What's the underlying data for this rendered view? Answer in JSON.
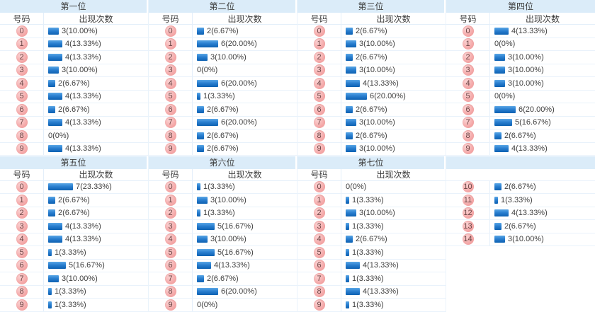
{
  "board": {
    "column_headers": {
      "number": "号码",
      "count": "出现次数"
    },
    "colors": {
      "header_band": "#dbecf9",
      "grid_line": "#e4effa",
      "bar_blue_top": "#5aa7e6",
      "bar_blue_bottom": "#0d61b2",
      "ball_pink": "#f4a9a9",
      "text": "#404040"
    },
    "tables": [
      {
        "title": "第一位",
        "rows": [
          {
            "num": "0",
            "count": 3,
            "label": "3(10.00%)"
          },
          {
            "num": "1",
            "count": 4,
            "label": "4(13.33%)"
          },
          {
            "num": "2",
            "count": 4,
            "label": "4(13.33%)"
          },
          {
            "num": "3",
            "count": 3,
            "label": "3(10.00%)"
          },
          {
            "num": "4",
            "count": 2,
            "label": "2(6.67%)"
          },
          {
            "num": "5",
            "count": 4,
            "label": "4(13.33%)"
          },
          {
            "num": "6",
            "count": 2,
            "label": "2(6.67%)"
          },
          {
            "num": "7",
            "count": 4,
            "label": "4(13.33%)"
          },
          {
            "num": "8",
            "count": 0,
            "label": "0(0%)"
          },
          {
            "num": "9",
            "count": 4,
            "label": "4(13.33%)"
          }
        ]
      },
      {
        "title": "第二位",
        "rows": [
          {
            "num": "0",
            "count": 2,
            "label": "2(6.67%)"
          },
          {
            "num": "1",
            "count": 6,
            "label": "6(20.00%)"
          },
          {
            "num": "2",
            "count": 3,
            "label": "3(10.00%)"
          },
          {
            "num": "3",
            "count": 0,
            "label": "0(0%)"
          },
          {
            "num": "4",
            "count": 6,
            "label": "6(20.00%)"
          },
          {
            "num": "5",
            "count": 1,
            "label": "1(3.33%)"
          },
          {
            "num": "6",
            "count": 2,
            "label": "2(6.67%)"
          },
          {
            "num": "7",
            "count": 6,
            "label": "6(20.00%)"
          },
          {
            "num": "8",
            "count": 2,
            "label": "2(6.67%)"
          },
          {
            "num": "9",
            "count": 2,
            "label": "2(6.67%)"
          }
        ]
      },
      {
        "title": "第三位",
        "rows": [
          {
            "num": "0",
            "count": 2,
            "label": "2(6.67%)"
          },
          {
            "num": "1",
            "count": 3,
            "label": "3(10.00%)"
          },
          {
            "num": "2",
            "count": 2,
            "label": "2(6.67%)"
          },
          {
            "num": "3",
            "count": 3,
            "label": "3(10.00%)"
          },
          {
            "num": "4",
            "count": 4,
            "label": "4(13.33%)"
          },
          {
            "num": "5",
            "count": 6,
            "label": "6(20.00%)"
          },
          {
            "num": "6",
            "count": 2,
            "label": "2(6.67%)"
          },
          {
            "num": "7",
            "count": 3,
            "label": "3(10.00%)"
          },
          {
            "num": "8",
            "count": 2,
            "label": "2(6.67%)"
          },
          {
            "num": "9",
            "count": 3,
            "label": "3(10.00%)"
          }
        ]
      },
      {
        "title": "第四位",
        "rows": [
          {
            "num": "0",
            "count": 4,
            "label": "4(13.33%)"
          },
          {
            "num": "1",
            "count": 0,
            "label": "0(0%)"
          },
          {
            "num": "2",
            "count": 3,
            "label": "3(10.00%)"
          },
          {
            "num": "3",
            "count": 3,
            "label": "3(10.00%)"
          },
          {
            "num": "4",
            "count": 3,
            "label": "3(10.00%)"
          },
          {
            "num": "5",
            "count": 0,
            "label": "0(0%)"
          },
          {
            "num": "6",
            "count": 6,
            "label": "6(20.00%)"
          },
          {
            "num": "7",
            "count": 5,
            "label": "5(16.67%)"
          },
          {
            "num": "8",
            "count": 2,
            "label": "2(6.67%)"
          },
          {
            "num": "9",
            "count": 4,
            "label": "4(13.33%)"
          }
        ]
      },
      {
        "title": "第五位",
        "rows": [
          {
            "num": "0",
            "count": 7,
            "label": "7(23.33%)"
          },
          {
            "num": "1",
            "count": 2,
            "label": "2(6.67%)"
          },
          {
            "num": "2",
            "count": 2,
            "label": "2(6.67%)"
          },
          {
            "num": "3",
            "count": 4,
            "label": "4(13.33%)"
          },
          {
            "num": "4",
            "count": 4,
            "label": "4(13.33%)"
          },
          {
            "num": "5",
            "count": 1,
            "label": "1(3.33%)"
          },
          {
            "num": "6",
            "count": 5,
            "label": "5(16.67%)"
          },
          {
            "num": "7",
            "count": 3,
            "label": "3(10.00%)"
          },
          {
            "num": "8",
            "count": 1,
            "label": "1(3.33%)"
          },
          {
            "num": "9",
            "count": 1,
            "label": "1(3.33%)"
          }
        ]
      },
      {
        "title": "第六位",
        "rows": [
          {
            "num": "0",
            "count": 1,
            "label": "1(3.33%)"
          },
          {
            "num": "1",
            "count": 3,
            "label": "3(10.00%)"
          },
          {
            "num": "2",
            "count": 1,
            "label": "1(3.33%)"
          },
          {
            "num": "3",
            "count": 5,
            "label": "5(16.67%)"
          },
          {
            "num": "4",
            "count": 3,
            "label": "3(10.00%)"
          },
          {
            "num": "5",
            "count": 5,
            "label": "5(16.67%)"
          },
          {
            "num": "6",
            "count": 4,
            "label": "4(13.33%)"
          },
          {
            "num": "7",
            "count": 2,
            "label": "2(6.67%)"
          },
          {
            "num": "8",
            "count": 6,
            "label": "6(20.00%)"
          },
          {
            "num": "9",
            "count": 0,
            "label": "0(0%)"
          }
        ]
      },
      {
        "title": "第七位",
        "rows": [
          {
            "num": "0",
            "count": 0,
            "label": "0(0%)"
          },
          {
            "num": "1",
            "count": 1,
            "label": "1(3.33%)"
          },
          {
            "num": "2",
            "count": 3,
            "label": "3(10.00%)"
          },
          {
            "num": "3",
            "count": 1,
            "label": "1(3.33%)"
          },
          {
            "num": "4",
            "count": 2,
            "label": "2(6.67%)"
          },
          {
            "num": "5",
            "count": 1,
            "label": "1(3.33%)"
          },
          {
            "num": "6",
            "count": 4,
            "label": "4(13.33%)"
          },
          {
            "num": "7",
            "count": 1,
            "label": "1(3.33%)"
          },
          {
            "num": "8",
            "count": 4,
            "label": "4(13.33%)"
          },
          {
            "num": "9",
            "count": 1,
            "label": "1(3.33%)"
          }
        ]
      },
      {
        "title": "",
        "continuation": true,
        "rows": [
          {
            "num": "10",
            "count": 2,
            "label": "2(6.67%)"
          },
          {
            "num": "11",
            "count": 1,
            "label": "1(3.33%)"
          },
          {
            "num": "12",
            "count": 4,
            "label": "4(13.33%)"
          },
          {
            "num": "13",
            "count": 2,
            "label": "2(6.67%)"
          },
          {
            "num": "14",
            "count": 3,
            "label": "3(10.00%)"
          }
        ]
      }
    ]
  }
}
